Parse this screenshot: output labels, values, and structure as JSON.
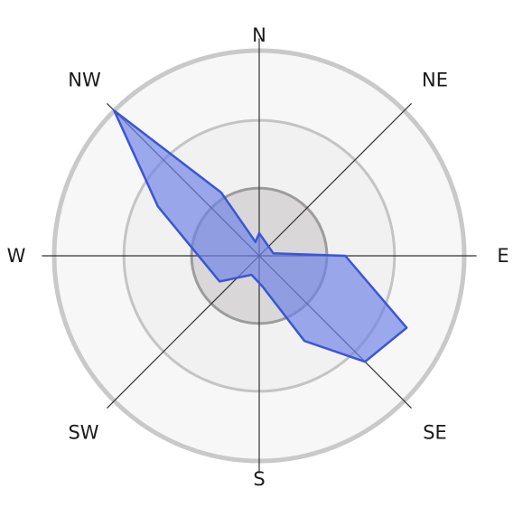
{
  "chart_data": {
    "type": "radar",
    "title": "",
    "directions": [
      {
        "name": "N",
        "angle_deg": 0
      },
      {
        "name": "NE",
        "angle_deg": 45
      },
      {
        "name": "E",
        "angle_deg": 90
      },
      {
        "name": "SE",
        "angle_deg": 135
      },
      {
        "name": "S",
        "angle_deg": 180
      },
      {
        "name": "SW",
        "angle_deg": 225
      },
      {
        "name": "W",
        "angle_deg": 270
      },
      {
        "name": "NW",
        "angle_deg": 315
      }
    ],
    "rings": [
      0.33,
      0.66,
      1.0
    ],
    "rlim": [
      0,
      1.0
    ],
    "series": [
      {
        "color": "#6f82e6",
        "points": [
          {
            "angle_deg": 0,
            "r": 0.11
          },
          {
            "angle_deg": 80,
            "r": 0.07
          },
          {
            "angle_deg": 90,
            "r": 0.42
          },
          {
            "angle_deg": 116,
            "r": 0.8
          },
          {
            "angle_deg": 135,
            "r": 0.73
          },
          {
            "angle_deg": 152,
            "r": 0.47
          },
          {
            "angle_deg": 174,
            "r": 0.15
          },
          {
            "angle_deg": 202,
            "r": 0.1
          },
          {
            "angle_deg": 237,
            "r": 0.23
          },
          {
            "angle_deg": 296,
            "r": 0.55
          },
          {
            "angle_deg": 315,
            "r": 1.0
          },
          {
            "angle_deg": 329,
            "r": 0.36
          },
          {
            "angle_deg": 345,
            "r": 0.07
          }
        ]
      }
    ]
  }
}
